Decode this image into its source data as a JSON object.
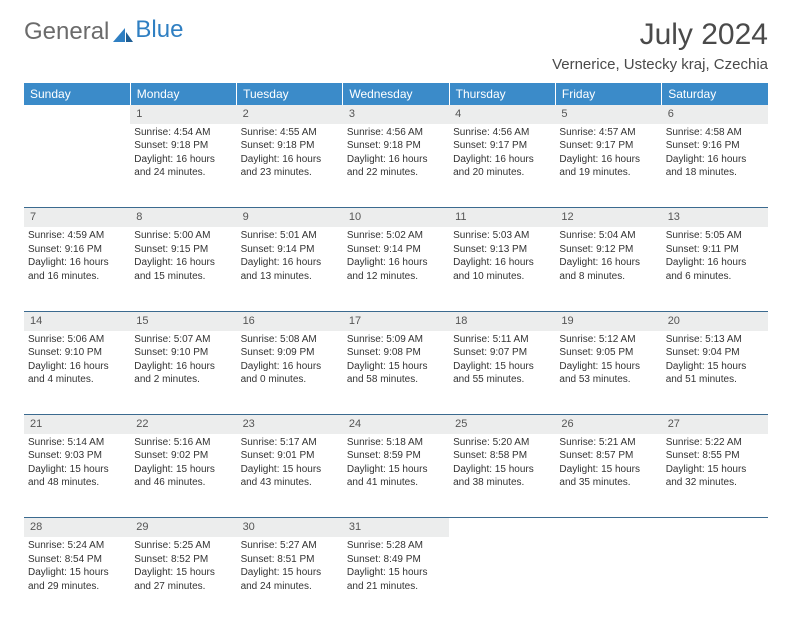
{
  "logo": {
    "text1": "General",
    "text2": "Blue"
  },
  "title": "July 2024",
  "location": "Vernerice, Ustecky kraj, Czechia",
  "colors": {
    "header_bg": "#3b8bc9",
    "header_text": "#ffffff",
    "daynum_bg": "#eceded",
    "rule": "#3b6a8f",
    "logo_gray": "#6b6b6b",
    "logo_blue": "#2f7fc2"
  },
  "weekdays": [
    "Sunday",
    "Monday",
    "Tuesday",
    "Wednesday",
    "Thursday",
    "Friday",
    "Saturday"
  ],
  "weeks": [
    {
      "nums": [
        "",
        "1",
        "2",
        "3",
        "4",
        "5",
        "6"
      ],
      "cells": [
        "",
        "Sunrise: 4:54 AM\nSunset: 9:18 PM\nDaylight: 16 hours and 24 minutes.",
        "Sunrise: 4:55 AM\nSunset: 9:18 PM\nDaylight: 16 hours and 23 minutes.",
        "Sunrise: 4:56 AM\nSunset: 9:18 PM\nDaylight: 16 hours and 22 minutes.",
        "Sunrise: 4:56 AM\nSunset: 9:17 PM\nDaylight: 16 hours and 20 minutes.",
        "Sunrise: 4:57 AM\nSunset: 9:17 PM\nDaylight: 16 hours and 19 minutes.",
        "Sunrise: 4:58 AM\nSunset: 9:16 PM\nDaylight: 16 hours and 18 minutes."
      ]
    },
    {
      "nums": [
        "7",
        "8",
        "9",
        "10",
        "11",
        "12",
        "13"
      ],
      "cells": [
        "Sunrise: 4:59 AM\nSunset: 9:16 PM\nDaylight: 16 hours and 16 minutes.",
        "Sunrise: 5:00 AM\nSunset: 9:15 PM\nDaylight: 16 hours and 15 minutes.",
        "Sunrise: 5:01 AM\nSunset: 9:14 PM\nDaylight: 16 hours and 13 minutes.",
        "Sunrise: 5:02 AM\nSunset: 9:14 PM\nDaylight: 16 hours and 12 minutes.",
        "Sunrise: 5:03 AM\nSunset: 9:13 PM\nDaylight: 16 hours and 10 minutes.",
        "Sunrise: 5:04 AM\nSunset: 9:12 PM\nDaylight: 16 hours and 8 minutes.",
        "Sunrise: 5:05 AM\nSunset: 9:11 PM\nDaylight: 16 hours and 6 minutes."
      ]
    },
    {
      "nums": [
        "14",
        "15",
        "16",
        "17",
        "18",
        "19",
        "20"
      ],
      "cells": [
        "Sunrise: 5:06 AM\nSunset: 9:10 PM\nDaylight: 16 hours and 4 minutes.",
        "Sunrise: 5:07 AM\nSunset: 9:10 PM\nDaylight: 16 hours and 2 minutes.",
        "Sunrise: 5:08 AM\nSunset: 9:09 PM\nDaylight: 16 hours and 0 minutes.",
        "Sunrise: 5:09 AM\nSunset: 9:08 PM\nDaylight: 15 hours and 58 minutes.",
        "Sunrise: 5:11 AM\nSunset: 9:07 PM\nDaylight: 15 hours and 55 minutes.",
        "Sunrise: 5:12 AM\nSunset: 9:05 PM\nDaylight: 15 hours and 53 minutes.",
        "Sunrise: 5:13 AM\nSunset: 9:04 PM\nDaylight: 15 hours and 51 minutes."
      ]
    },
    {
      "nums": [
        "21",
        "22",
        "23",
        "24",
        "25",
        "26",
        "27"
      ],
      "cells": [
        "Sunrise: 5:14 AM\nSunset: 9:03 PM\nDaylight: 15 hours and 48 minutes.",
        "Sunrise: 5:16 AM\nSunset: 9:02 PM\nDaylight: 15 hours and 46 minutes.",
        "Sunrise: 5:17 AM\nSunset: 9:01 PM\nDaylight: 15 hours and 43 minutes.",
        "Sunrise: 5:18 AM\nSunset: 8:59 PM\nDaylight: 15 hours and 41 minutes.",
        "Sunrise: 5:20 AM\nSunset: 8:58 PM\nDaylight: 15 hours and 38 minutes.",
        "Sunrise: 5:21 AM\nSunset: 8:57 PM\nDaylight: 15 hours and 35 minutes.",
        "Sunrise: 5:22 AM\nSunset: 8:55 PM\nDaylight: 15 hours and 32 minutes."
      ]
    },
    {
      "nums": [
        "28",
        "29",
        "30",
        "31",
        "",
        "",
        ""
      ],
      "cells": [
        "Sunrise: 5:24 AM\nSunset: 8:54 PM\nDaylight: 15 hours and 29 minutes.",
        "Sunrise: 5:25 AM\nSunset: 8:52 PM\nDaylight: 15 hours and 27 minutes.",
        "Sunrise: 5:27 AM\nSunset: 8:51 PM\nDaylight: 15 hours and 24 minutes.",
        "Sunrise: 5:28 AM\nSunset: 8:49 PM\nDaylight: 15 hours and 21 minutes.",
        "",
        "",
        ""
      ]
    }
  ]
}
